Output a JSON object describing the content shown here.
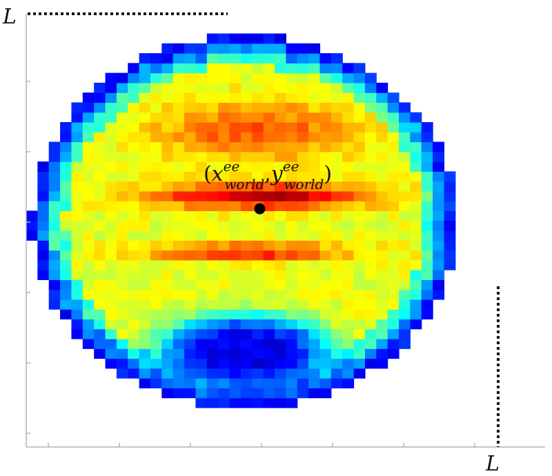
{
  "chart_data": {
    "type": "heatmap",
    "title": "",
    "xlabel": "",
    "ylabel": "",
    "axis_corner_label": "L",
    "x_end_label": "L",
    "y_end_label": "L",
    "grid": false,
    "colormap": "jet",
    "x_range": [
      0,
      1
    ],
    "y_range": [
      0,
      1
    ],
    "x_tick_count": 7,
    "y_tick_count": 6,
    "workspace_shape": "circle",
    "workspace_center": [
      0.44,
      0.52
    ],
    "workspace_radius": 0.43,
    "high_value_regions": [
      {
        "name": "upper arc",
        "center": [
          0.46,
          0.73
        ],
        "spread": [
          0.2,
          0.07
        ],
        "value": 0.8
      },
      {
        "name": "red band",
        "center": [
          0.47,
          0.58
        ],
        "spread": [
          0.22,
          0.03
        ],
        "value": 0.95
      },
      {
        "name": "lower band",
        "center": [
          0.45,
          0.45
        ],
        "spread": [
          0.21,
          0.02
        ],
        "value": 0.85
      }
    ],
    "low_value_region": {
      "name": "lower lobe",
      "center": [
        0.44,
        0.22
      ],
      "spread": [
        0.18,
        0.09
      ],
      "value": 0.1
    },
    "marked_point": {
      "x": 0.47,
      "y": 0.55
    },
    "annotation": {
      "open": "(",
      "x_var": "x",
      "x_sup": "ee",
      "x_sub": "world",
      "sep": ",",
      "y_var": "y",
      "y_sup": "ee",
      "y_sub": "world",
      "close": ")"
    }
  }
}
